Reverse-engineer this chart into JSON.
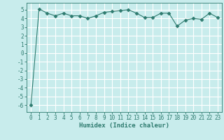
{
  "x": [
    0,
    1,
    2,
    3,
    4,
    5,
    6,
    7,
    8,
    9,
    10,
    11,
    12,
    13,
    14,
    15,
    16,
    17,
    18,
    19,
    20,
    21,
    22,
    23
  ],
  "y": [
    -6.0,
    5.1,
    4.6,
    4.3,
    4.6,
    4.3,
    4.3,
    4.0,
    4.3,
    4.7,
    4.8,
    4.9,
    5.0,
    4.6,
    4.1,
    4.1,
    4.6,
    4.6,
    3.1,
    3.8,
    4.0,
    3.9,
    4.6,
    4.1
  ],
  "xlabel": "Humidex (Indice chaleur)",
  "line_color": "#2d7a6e",
  "marker": "D",
  "marker_size": 2.5,
  "background_color": "#c8ecec",
  "grid_color": "#ffffff",
  "ylim": [
    -6.8,
    5.8
  ],
  "xlim": [
    -0.5,
    23.5
  ],
  "yticks": [
    -6,
    -5,
    -4,
    -3,
    -2,
    -1,
    0,
    1,
    2,
    3,
    4,
    5
  ],
  "xticks": [
    0,
    1,
    2,
    3,
    4,
    5,
    6,
    7,
    8,
    9,
    10,
    11,
    12,
    13,
    14,
    15,
    16,
    17,
    18,
    19,
    20,
    21,
    22,
    23
  ],
  "tick_fontsize": 5.5,
  "xlabel_fontsize": 6.5
}
